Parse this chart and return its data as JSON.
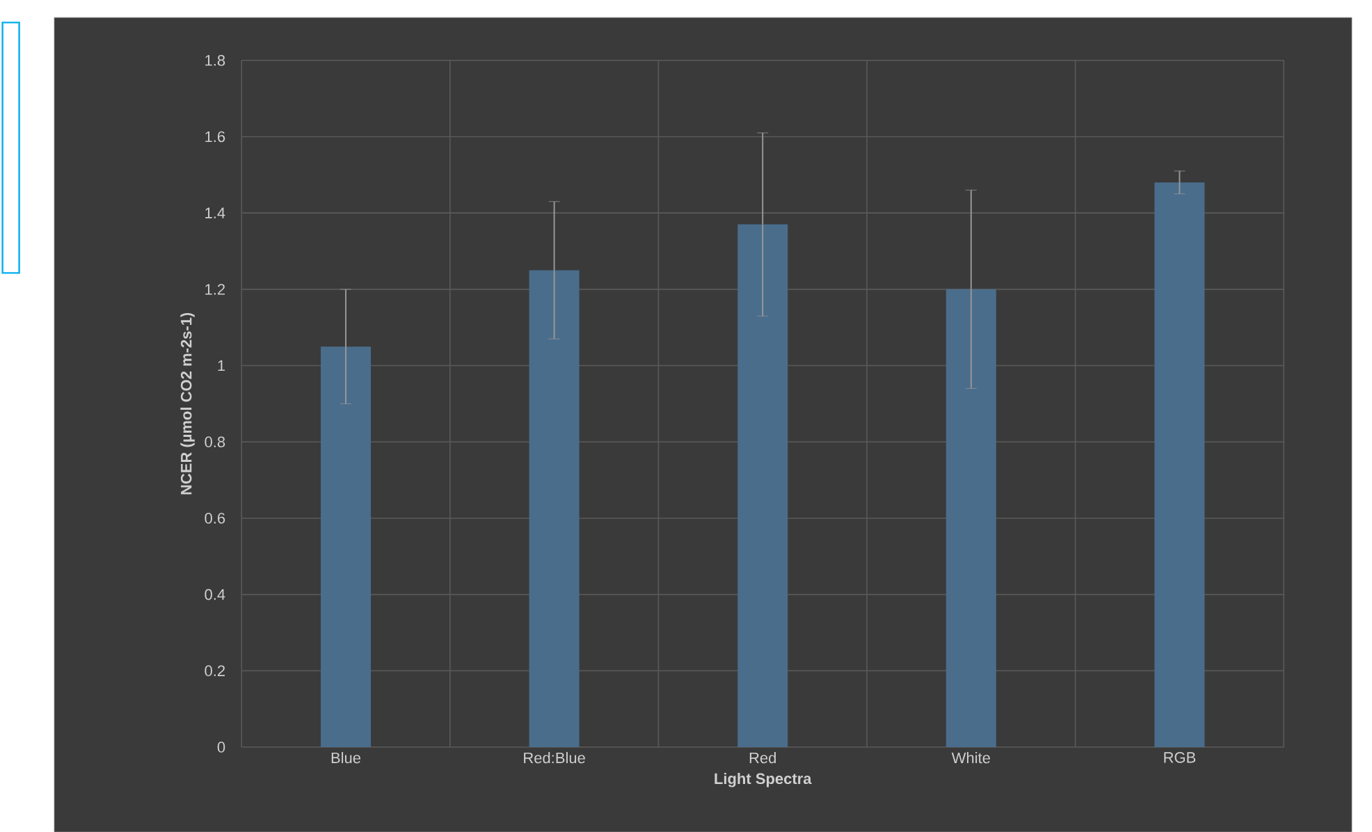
{
  "chart_data": {
    "type": "bar",
    "xlabel": "Light Spectra",
    "ylabel": "NCER (µmol CO2 m-2s-1)",
    "categories": [
      "Blue",
      "Red:Blue",
      "Red",
      "White",
      "RGB"
    ],
    "values": [
      1.05,
      1.25,
      1.37,
      1.2,
      1.48
    ],
    "errors": [
      0.15,
      0.18,
      0.24,
      0.26,
      0.03
    ],
    "color": "#4a6d8c",
    "ylim": [
      0,
      1.8
    ],
    "yticks": [
      0,
      0.2,
      0.4,
      0.6,
      0.8,
      1,
      1.2,
      1.4,
      1.6,
      1.8
    ],
    "grid": true
  }
}
